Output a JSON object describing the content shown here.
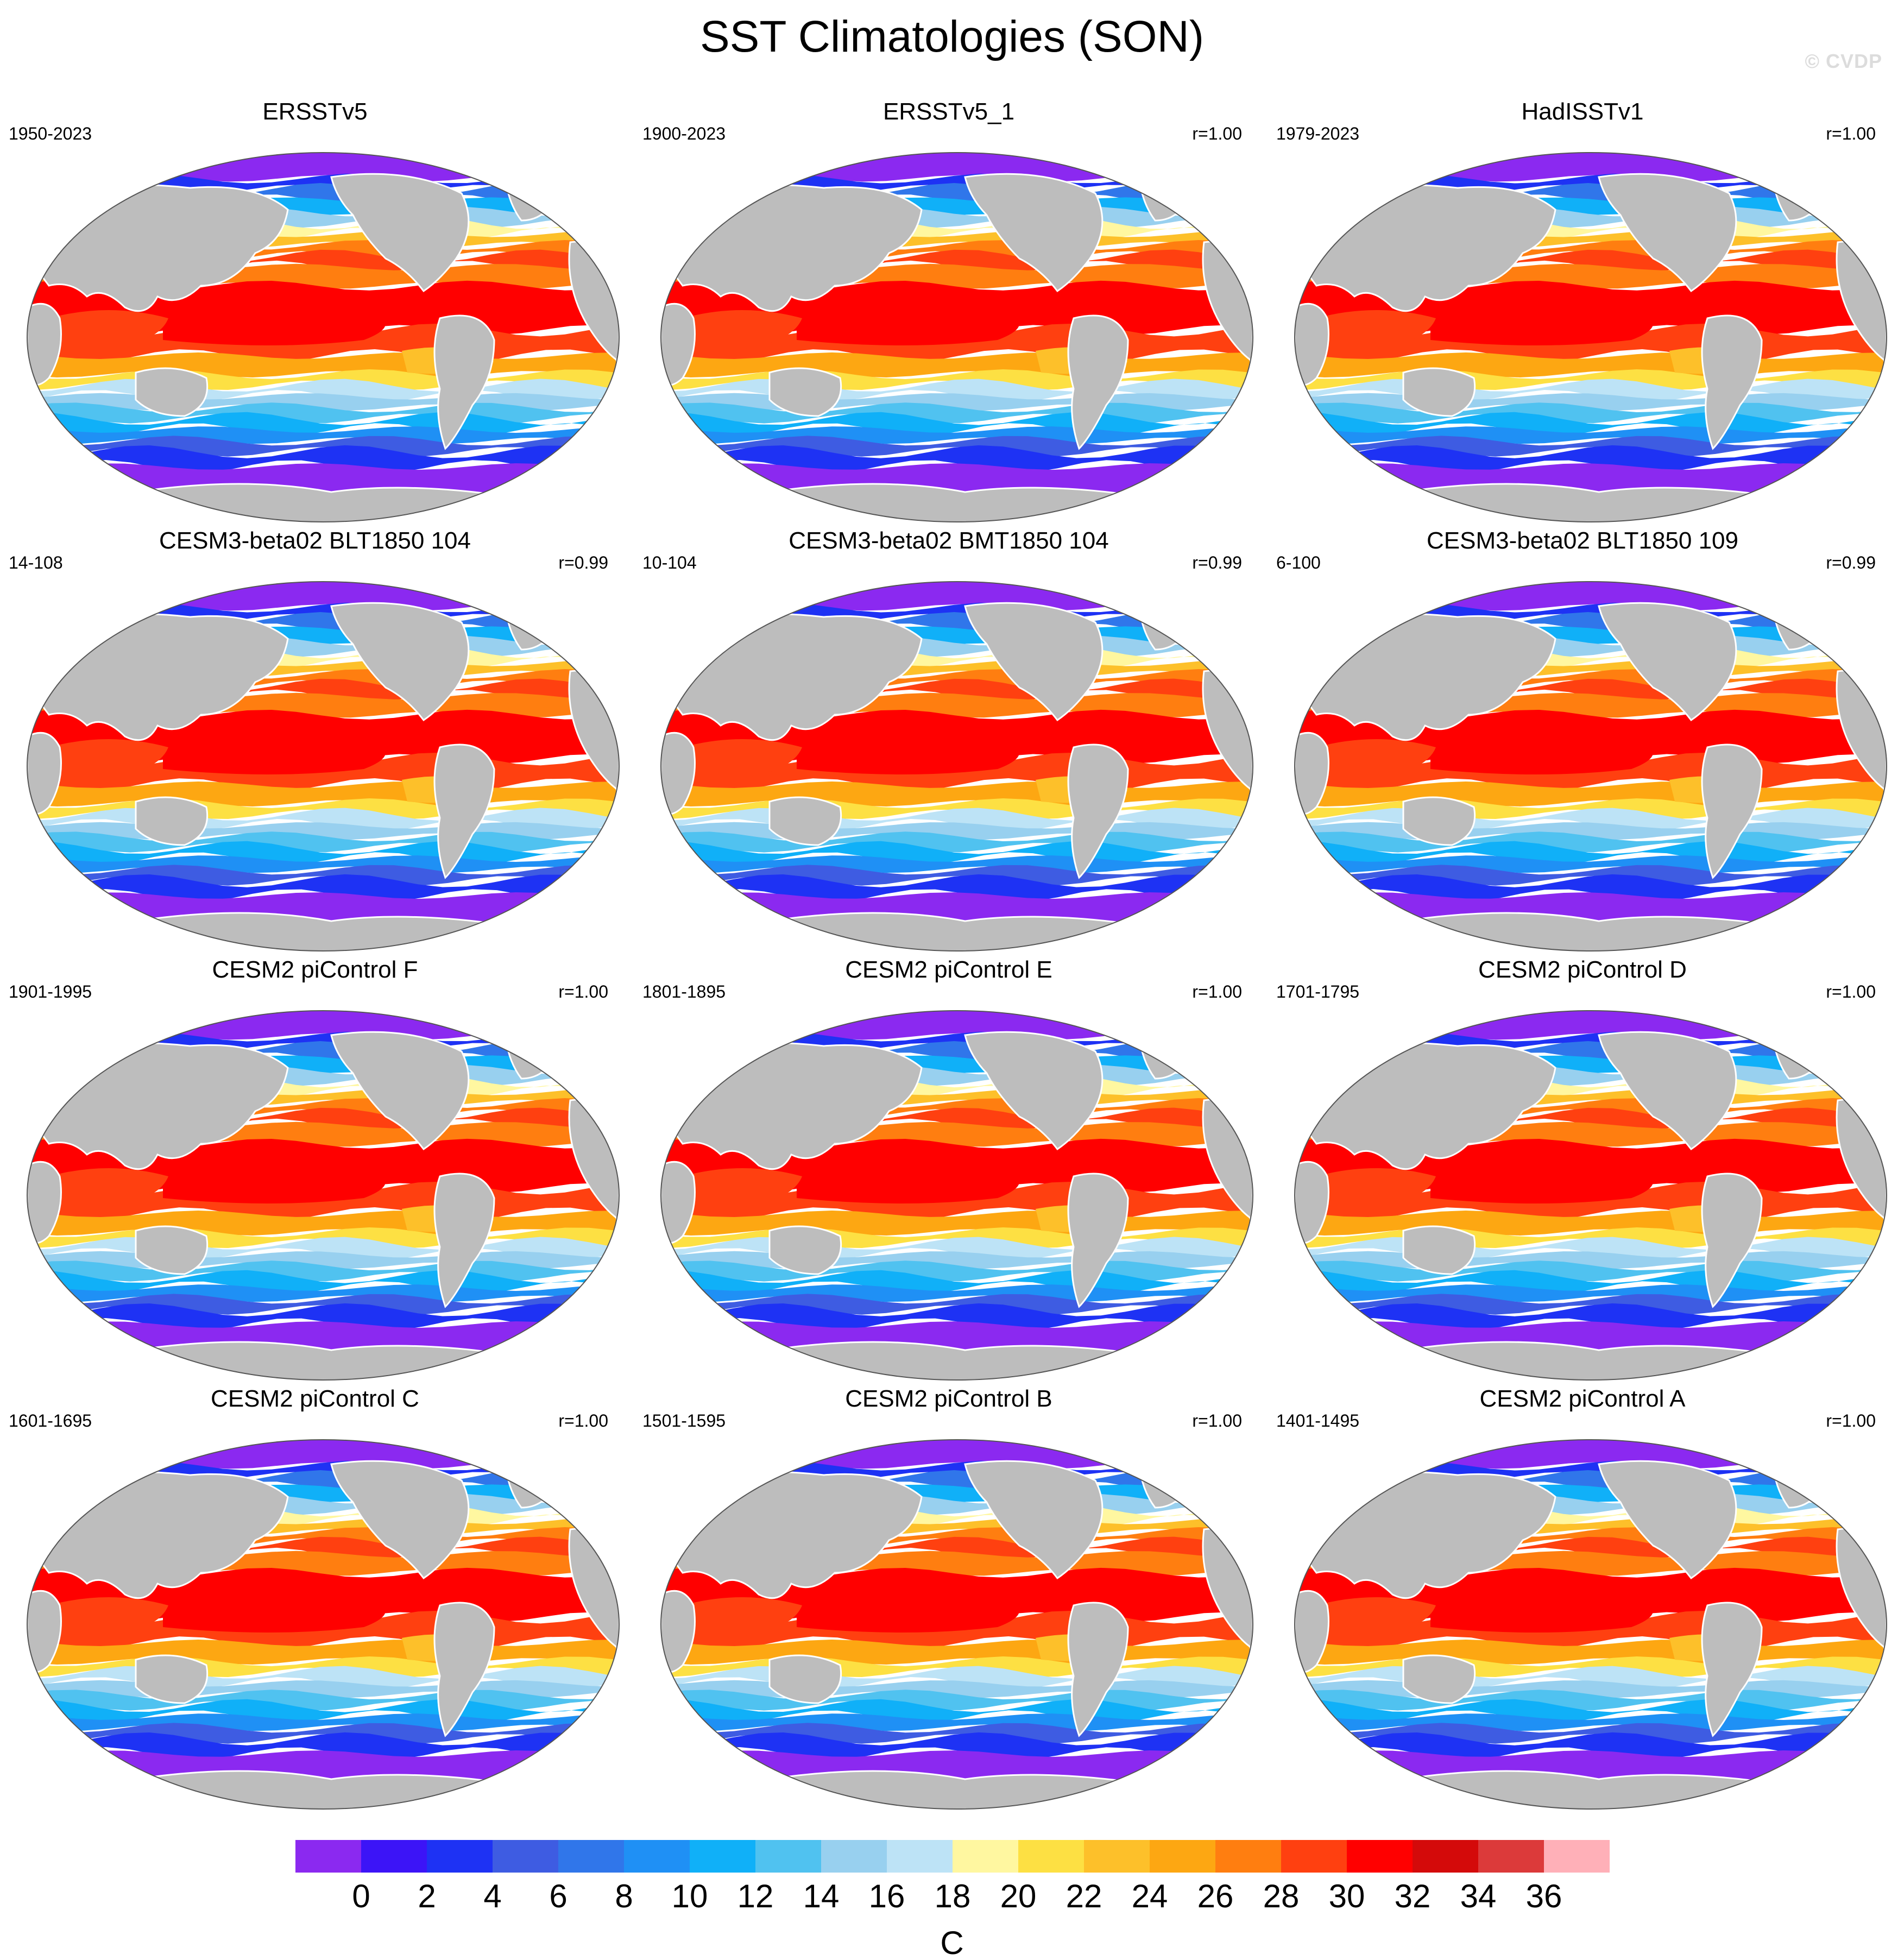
{
  "title": "SST Climatologies (SON)",
  "watermark": "© CVDP",
  "panels": [
    {
      "title": "ERSSTv5",
      "years": "1950-2023",
      "r": ""
    },
    {
      "title": "ERSSTv5_1",
      "years": "1900-2023",
      "r": "r=1.00"
    },
    {
      "title": "HadISSTv1",
      "years": "1979-2023",
      "r": "r=1.00"
    },
    {
      "title": "CESM3-beta02 BLT1850 104",
      "years": "14-108",
      "r": "r=0.99"
    },
    {
      "title": "CESM3-beta02 BMT1850 104",
      "years": "10-104",
      "r": "r=0.99"
    },
    {
      "title": "CESM3-beta02 BLT1850 109",
      "years": "6-100",
      "r": "r=0.99"
    },
    {
      "title": "CESM2 piControl F",
      "years": "1901-1995",
      "r": "r=1.00"
    },
    {
      "title": "CESM2 piControl E",
      "years": "1801-1895",
      "r": "r=1.00"
    },
    {
      "title": "CESM2 piControl D",
      "years": "1701-1795",
      "r": "r=1.00"
    },
    {
      "title": "CESM2 piControl C",
      "years": "1601-1695",
      "r": "r=1.00"
    },
    {
      "title": "CESM2 piControl B",
      "years": "1501-1595",
      "r": "r=1.00"
    },
    {
      "title": "CESM2 piControl A",
      "years": "1401-1495",
      "r": "r=1.00"
    }
  ],
  "colorbar": {
    "units": "C",
    "tick_labels": [
      "0",
      "2",
      "4",
      "6",
      "8",
      "10",
      "12",
      "14",
      "16",
      "18",
      "20",
      "22",
      "24",
      "26",
      "28",
      "30",
      "32",
      "34",
      "36"
    ],
    "colors": [
      "#8b29f0",
      "#3c14f7",
      "#1e32f4",
      "#3e5ce2",
      "#3076ea",
      "#1f90f5",
      "#10b0f8",
      "#50c2f0",
      "#98d0ef",
      "#bde3f6",
      "#fff7a0",
      "#fde043",
      "#fdc02a",
      "#fda712",
      "#ff7e10",
      "#ff4010",
      "#ff0000",
      "#d40a0a",
      "#dc3a3a",
      "#ffb0b8"
    ]
  }
}
